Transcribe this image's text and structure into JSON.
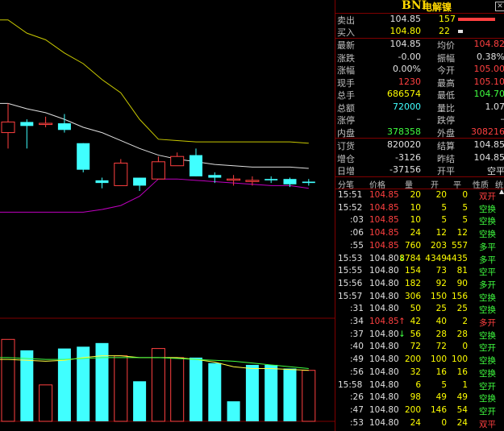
{
  "instrument": {
    "code": "BNI",
    "name": "电解镍",
    "close_icon": "close-icon"
  },
  "orderbook": [
    {
      "label": "卖出",
      "price": "104.85",
      "volume": "157",
      "bar_fraction": 1.0,
      "bar_color": "#ff4040"
    },
    {
      "label": "买入",
      "price": "104.80",
      "volume": "22",
      "bar_fraction": 0.14,
      "bar_color": "#e0e0e0"
    }
  ],
  "quote_rows": [
    {
      "l1": "最新",
      "v1": "104.85",
      "c1": "wht",
      "l2": "均价",
      "v2": "104.82",
      "c2": "red"
    },
    {
      "l1": "涨跌",
      "v1": "-0.00",
      "c1": "wht",
      "l2": "振幅",
      "v2": "0.38%",
      "c2": "wht"
    },
    {
      "l1": "涨幅",
      "v1": "0.00%",
      "c1": "wht",
      "l2": "今开",
      "v2": "105.00",
      "c2": "red"
    },
    {
      "l1": "现手",
      "v1": "1230",
      "c1": "red",
      "l2": "最高",
      "v2": "105.10",
      "c2": "red"
    },
    {
      "l1": "总手",
      "v1": "686574",
      "c1": "yel",
      "l2": "最低",
      "v2": "104.70",
      "c2": "grn"
    },
    {
      "l1": "总额",
      "v1": "72000",
      "c1": "cyan",
      "l2": "量比",
      "v2": "1.07",
      "c2": "wht"
    },
    {
      "l1": "涨停",
      "v1": "–",
      "c1": "wht",
      "l2": "跌停",
      "v2": "–",
      "c2": "wht"
    },
    {
      "l1": "内盘",
      "v1": "378358",
      "c1": "grn",
      "l2": "外盘",
      "v2": "308216",
      "c2": "red"
    }
  ],
  "position_rows": [
    {
      "l1": "订货",
      "v1": "820020",
      "l2": "结算",
      "v2": "104.85"
    },
    {
      "l1": "增仓",
      "v1": "-3126",
      "l2": "昨结",
      "v2": "104.85"
    },
    {
      "l1": "日增",
      "v1": "-37156",
      "l2": "开平",
      "v2": "空平"
    }
  ],
  "tick_headers": [
    "分笔",
    "价格",
    "量",
    "开",
    "平",
    "性质",
    "统"
  ],
  "ticks": [
    {
      "time": "15:51",
      "price": "104.85",
      "pc": "red",
      "arrow": "",
      "vol": "20",
      "open": "20",
      "close": "0",
      "type": "双开",
      "tc": "red"
    },
    {
      "time": "15:52",
      "price": "104.85",
      "pc": "red",
      "arrow": "",
      "vol": "10",
      "open": "5",
      "close": "5",
      "type": "空换",
      "tc": "grn"
    },
    {
      "time": ":03",
      "price": "104.85",
      "pc": "red",
      "arrow": "",
      "vol": "10",
      "open": "5",
      "close": "5",
      "type": "空换",
      "tc": "grn"
    },
    {
      "time": ":06",
      "price": "104.85",
      "pc": "red",
      "arrow": "",
      "vol": "24",
      "open": "12",
      "close": "12",
      "type": "空换",
      "tc": "grn"
    },
    {
      "time": ":55",
      "price": "104.85",
      "pc": "red",
      "arrow": "",
      "vol": "760",
      "open": "203",
      "close": "557",
      "type": "多平",
      "tc": "grn"
    },
    {
      "time": "15:53",
      "price": "104.80",
      "pc": "wht",
      "arrow": "↓",
      "vol": "8784",
      "open": "4349",
      "close": "4435",
      "type": "多平",
      "tc": "grn"
    },
    {
      "time": "15:55",
      "price": "104.80",
      "pc": "wht",
      "arrow": "",
      "vol": "154",
      "open": "73",
      "close": "81",
      "type": "空平",
      "tc": "grn"
    },
    {
      "time": "15:56",
      "price": "104.80",
      "pc": "wht",
      "arrow": "",
      "vol": "182",
      "open": "92",
      "close": "90",
      "type": "多开",
      "tc": "grn"
    },
    {
      "time": "15:57",
      "price": "104.80",
      "pc": "wht",
      "arrow": "",
      "vol": "306",
      "open": "150",
      "close": "156",
      "type": "空换",
      "tc": "grn"
    },
    {
      "time": ":31",
      "price": "104.80",
      "pc": "wht",
      "arrow": "",
      "vol": "50",
      "open": "25",
      "close": "25",
      "type": "空换",
      "tc": "grn"
    },
    {
      "time": ":34",
      "price": "104.85",
      "pc": "red",
      "arrow": "↑",
      "vol": "42",
      "open": "40",
      "close": "2",
      "type": "多开",
      "tc": "red"
    },
    {
      "time": ":37",
      "price": "104.80",
      "pc": "wht",
      "arrow": "↓",
      "vol": "56",
      "open": "28",
      "close": "28",
      "type": "空换",
      "tc": "grn"
    },
    {
      "time": ":40",
      "price": "104.80",
      "pc": "wht",
      "arrow": "",
      "vol": "72",
      "open": "72",
      "close": "0",
      "type": "空开",
      "tc": "grn"
    },
    {
      "time": ":49",
      "price": "104.80",
      "pc": "wht",
      "arrow": "",
      "vol": "200",
      "open": "100",
      "close": "100",
      "type": "空换",
      "tc": "grn"
    },
    {
      "time": ":56",
      "price": "104.80",
      "pc": "wht",
      "arrow": "",
      "vol": "32",
      "open": "16",
      "close": "16",
      "type": "空换",
      "tc": "grn"
    },
    {
      "time": "15:58",
      "price": "104.80",
      "pc": "wht",
      "arrow": "",
      "vol": "6",
      "open": "5",
      "close": "1",
      "type": "空开",
      "tc": "grn"
    },
    {
      "time": ":26",
      "price": "104.80",
      "pc": "wht",
      "arrow": "",
      "vol": "98",
      "open": "49",
      "close": "49",
      "type": "空换",
      "tc": "grn"
    },
    {
      "time": ":47",
      "price": "104.80",
      "pc": "wht",
      "arrow": "",
      "vol": "200",
      "open": "146",
      "close": "54",
      "type": "空开",
      "tc": "grn"
    },
    {
      "time": ":53",
      "price": "104.80",
      "pc": "wht",
      "arrow": "",
      "vol": "24",
      "open": "0",
      "close": "24",
      "type": "双平",
      "tc": "red"
    }
  ],
  "chart_data": {
    "type": "candlestick",
    "title": "",
    "colors": {
      "up": "#ff4040",
      "down": "#40ffff",
      "upper_band": "#c8c800",
      "mid_band": "#e0e0e0",
      "lower_band": "#c000c0",
      "grid": "#800000"
    },
    "price_range": [
      103.8,
      106.2
    ],
    "candles": [
      {
        "open": 105.2,
        "close": 105.28,
        "high": 105.42,
        "low": 105.08
      },
      {
        "open": 105.28,
        "close": 105.25,
        "high": 105.3,
        "low": 105.08
      },
      {
        "open": 105.27,
        "close": 105.27,
        "high": 105.32,
        "low": 105.24
      },
      {
        "open": 105.27,
        "close": 105.22,
        "high": 105.34,
        "low": 105.2
      },
      {
        "open": 105.12,
        "close": 104.92,
        "high": 105.12,
        "low": 104.9
      },
      {
        "open": 104.84,
        "close": 104.82,
        "high": 104.86,
        "low": 104.78
      },
      {
        "open": 104.8,
        "close": 104.97,
        "high": 105.0,
        "low": 104.8
      },
      {
        "open": 104.86,
        "close": 104.8,
        "high": 104.86,
        "low": 104.76
      },
      {
        "open": 104.85,
        "close": 104.98,
        "high": 105.02,
        "low": 104.85
      },
      {
        "open": 104.95,
        "close": 105.02,
        "high": 105.05,
        "low": 104.95
      },
      {
        "open": 105.03,
        "close": 104.87,
        "high": 105.08,
        "low": 104.87
      },
      {
        "open": 104.88,
        "close": 104.86,
        "high": 104.9,
        "low": 104.82
      },
      {
        "open": 104.85,
        "close": 104.85,
        "high": 104.88,
        "low": 104.8
      },
      {
        "open": 104.84,
        "close": 104.84,
        "high": 104.87,
        "low": 104.8
      },
      {
        "open": 104.85,
        "close": 104.84,
        "high": 104.87,
        "low": 104.82
      },
      {
        "open": 104.85,
        "close": 104.81,
        "high": 104.86,
        "low": 104.79
      },
      {
        "open": 104.83,
        "close": 104.82,
        "high": 104.85,
        "low": 104.8
      }
    ],
    "upper_band": [
      106.05,
      105.95,
      105.9,
      105.8,
      105.72,
      105.6,
      105.5,
      105.3,
      105.15,
      105.14,
      105.13,
      105.13,
      105.13,
      105.13,
      105.13,
      105.13,
      105.12
    ],
    "mid_band": [
      105.42,
      105.38,
      105.35,
      105.3,
      105.24,
      105.2,
      105.14,
      105.08,
      105.03,
      105.0,
      104.98,
      104.96,
      104.95,
      104.94,
      104.94,
      104.94,
      104.93
    ],
    "lower_band": [
      104.6,
      104.6,
      104.6,
      104.6,
      104.6,
      104.62,
      104.65,
      104.72,
      104.85,
      104.85,
      104.84,
      104.83,
      104.82,
      104.81,
      104.8,
      104.8,
      104.78
    ],
    "volume_max": 100,
    "volumes": [
      {
        "value": 90,
        "up": true
      },
      {
        "value": 78,
        "up": false
      },
      {
        "value": 40,
        "up": true
      },
      {
        "value": 80,
        "up": false
      },
      {
        "value": 82,
        "up": false
      },
      {
        "value": 86,
        "up": false
      },
      {
        "value": 72,
        "up": true
      },
      {
        "value": 44,
        "up": false
      },
      {
        "value": 80,
        "up": true
      },
      {
        "value": 70,
        "up": true
      },
      {
        "value": 70,
        "up": false
      },
      {
        "value": 64,
        "up": false
      },
      {
        "value": 22,
        "up": false
      },
      {
        "value": 62,
        "up": false
      },
      {
        "value": 62,
        "up": false
      },
      {
        "value": 58,
        "up": false
      },
      {
        "value": 56,
        "up": true
      }
    ],
    "volume_ma1": [
      68,
      67,
      66,
      67,
      70,
      72,
      72,
      70,
      70,
      70,
      68,
      65,
      60,
      58,
      58,
      57,
      56
    ],
    "volume_ma2": [
      70,
      69,
      68,
      68,
      69,
      70,
      70,
      70,
      70,
      69,
      68,
      67,
      66,
      64,
      62,
      60,
      58
    ]
  }
}
